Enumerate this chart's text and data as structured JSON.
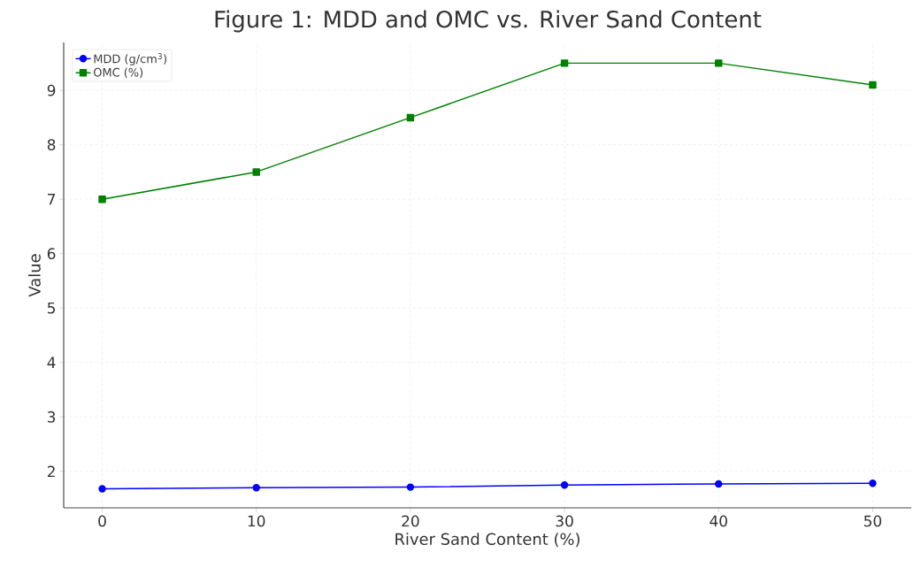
{
  "chart_data": {
    "type": "line",
    "title": "Figure 1: MDD and OMC vs. River Sand Content",
    "xlabel": "River Sand Content (%)",
    "ylabel": "Value",
    "x": [
      0,
      10,
      20,
      30,
      40,
      50
    ],
    "series": [
      {
        "name": "MDD (g/cm$^{3}$)",
        "color": "#0000ff",
        "marker": "circle",
        "values": [
          1.68,
          1.7,
          1.71,
          1.75,
          1.77,
          1.78
        ]
      },
      {
        "name": "OMC (%)",
        "color": "#008000",
        "marker": "square",
        "values": [
          7.0,
          7.5,
          8.5,
          9.5,
          9.5,
          9.1
        ]
      }
    ],
    "xlim": [
      -2.5,
      52.5
    ],
    "xticks": [
      0,
      10,
      20,
      30,
      40,
      50
    ],
    "ylim": [
      1.33,
      9.88
    ],
    "yticks": [
      2,
      3,
      4,
      5,
      6,
      7,
      8,
      9
    ],
    "grid": true,
    "legend": "top left",
    "line_style": "solid"
  }
}
